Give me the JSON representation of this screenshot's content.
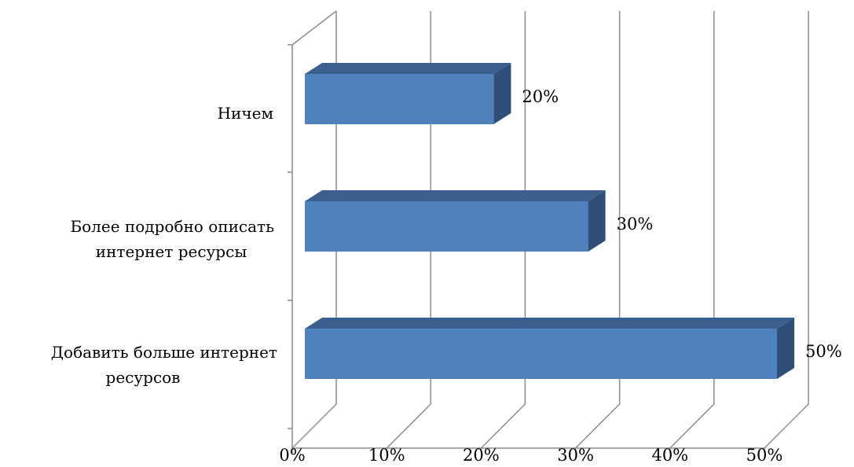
{
  "chart_data": {
    "type": "bar",
    "orientation": "horizontal",
    "style": "3d",
    "categories": [
      [
        "Ничем"
      ],
      [
        "Более подробно описать",
        "интернет ресурсы"
      ],
      [
        "Добавить больше интернет",
        "ресурсов"
      ]
    ],
    "values": [
      20,
      30,
      50
    ],
    "data_labels": [
      "20%",
      "30%",
      "50%"
    ],
    "xlim": [
      0,
      50
    ],
    "x_ticks": [
      0,
      10,
      20,
      30,
      40,
      50
    ],
    "x_tick_labels": [
      "0%",
      "10%",
      "20%",
      "30%",
      "40%",
      "50%"
    ],
    "grid": true,
    "legend": "none",
    "colors": {
      "bar_front": "#4f81bd",
      "bar_top": "#3a5f8f",
      "bar_side": "#2f4f7a",
      "grid": "#8c8c8c"
    }
  }
}
